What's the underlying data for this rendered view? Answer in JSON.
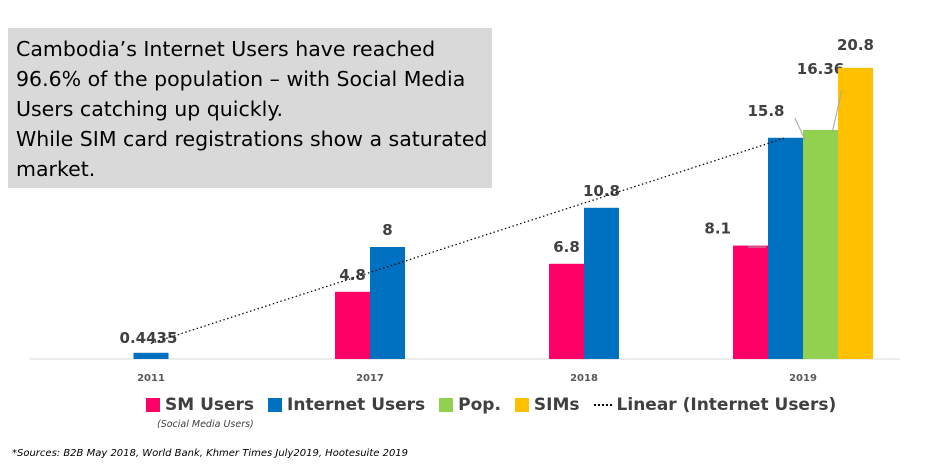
{
  "callout": {
    "lines": [
      "Cambodia’s Internet Users have reached",
      "96.6% of the population – with Social Media",
      "Users catching up quickly.",
      "While SIM card registrations show a saturated",
      "market."
    ]
  },
  "legend": {
    "items": [
      {
        "label": "SM Users",
        "color": "#ff0066"
      },
      {
        "label": "Internet Users",
        "color": "#0070c0"
      },
      {
        "label": "Pop.",
        "color": "#92d050"
      },
      {
        "label": "SIMs",
        "color": "#ffc000"
      }
    ],
    "trend_label": "Linear (Internet Users)",
    "note": "(Social Media Users)"
  },
  "source": "*Sources: B2B May 2018, World Bank, Khmer Times July2019, Hootesuite 2019",
  "chart_data": {
    "type": "bar",
    "categories": [
      "2011",
      "2017",
      "2018",
      "2019"
    ],
    "series": [
      {
        "name": "SM Users",
        "color": "#ff0066",
        "values": [
          null,
          4.8,
          6.8,
          8.1
        ],
        "labels": [
          "",
          "4.8",
          "6.8",
          "8.1"
        ]
      },
      {
        "name": "Internet Users",
        "color": "#0070c0",
        "values": [
          0.4435,
          8,
          10.8,
          15.8
        ],
        "labels": [
          "0.4435",
          "8",
          "10.8",
          "15.8"
        ]
      },
      {
        "name": "Pop.",
        "color": "#92d050",
        "values": [
          null,
          null,
          null,
          16.36
        ],
        "labels": [
          "",
          "",
          "",
          "16.36"
        ]
      },
      {
        "name": "SIMs",
        "color": "#ffc000",
        "values": [
          null,
          null,
          null,
          20.8
        ],
        "labels": [
          "",
          "",
          "",
          "20.8"
        ]
      }
    ],
    "trendline": {
      "series": "Internet Users",
      "type": "linear",
      "name": "Linear (Internet Users)"
    },
    "ylim": [
      0,
      22
    ],
    "grid": false,
    "legend": "bottom"
  }
}
